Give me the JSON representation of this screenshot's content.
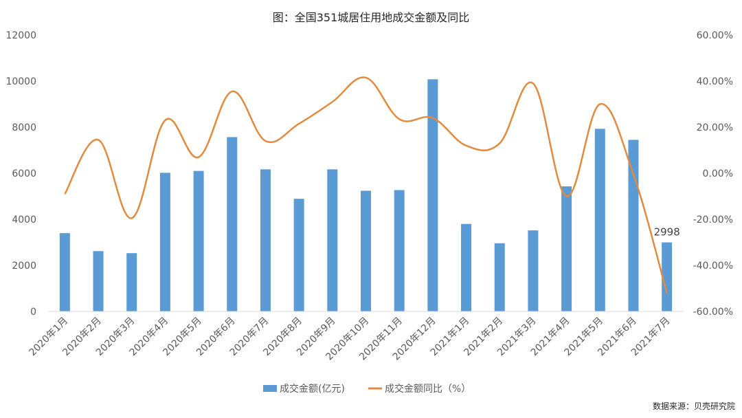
{
  "colors": {
    "bar": "#5b9bd5",
    "line": "#e38a3c",
    "axis": "#d9d9d9"
  },
  "source": "数据来源：贝壳研究院",
  "chart_data": {
    "type": "bar",
    "title": "图：全国351城居住用地成交金额及同比",
    "categories": [
      "2020年1月",
      "2020年2月",
      "2020年3月",
      "2020年4月",
      "2020年5月",
      "2020年6月",
      "2020年7月",
      "2020年8月",
      "2020年9月",
      "2020年10月",
      "2020年11月",
      "2020年12月",
      "2021年1月",
      "2021年2月",
      "2021年3月",
      "2021年4月",
      "2021年5月",
      "2021年6月",
      "2021年7月"
    ],
    "series": [
      {
        "name": "成交金额(亿元)",
        "type": "bar",
        "axis": "left",
        "values": [
          3400,
          2620,
          2530,
          6020,
          6100,
          7570,
          6170,
          4890,
          6170,
          5240,
          5270,
          10080,
          3800,
          2960,
          3520,
          5430,
          7930,
          7450,
          2998
        ]
      },
      {
        "name": "成交金额同比（%）",
        "type": "line",
        "axis": "right",
        "smooth": true,
        "values": [
          -9.0,
          14.5,
          -19.5,
          23.0,
          7.0,
          35.5,
          14.0,
          21.5,
          31.0,
          41.5,
          23.5,
          24.0,
          12.0,
          13.0,
          39.0,
          -10.0,
          30.0,
          -0.5,
          -52.0
        ]
      }
    ],
    "left_axis": {
      "min": 0,
      "max": 12000,
      "step": 2000,
      "ticks": [
        "0",
        "2000",
        "4000",
        "6000",
        "8000",
        "10000",
        "12000"
      ]
    },
    "right_axis": {
      "min": -60,
      "max": 60,
      "step": 20,
      "ticks": [
        "-60.00%",
        "-40.00%",
        "-20.00%",
        "0.00%",
        "20.00%",
        "40.00%",
        "60.00%"
      ]
    },
    "data_labels": [
      {
        "index": 18,
        "text": "2998"
      }
    ],
    "legend_position": "bottom",
    "grid": false
  }
}
